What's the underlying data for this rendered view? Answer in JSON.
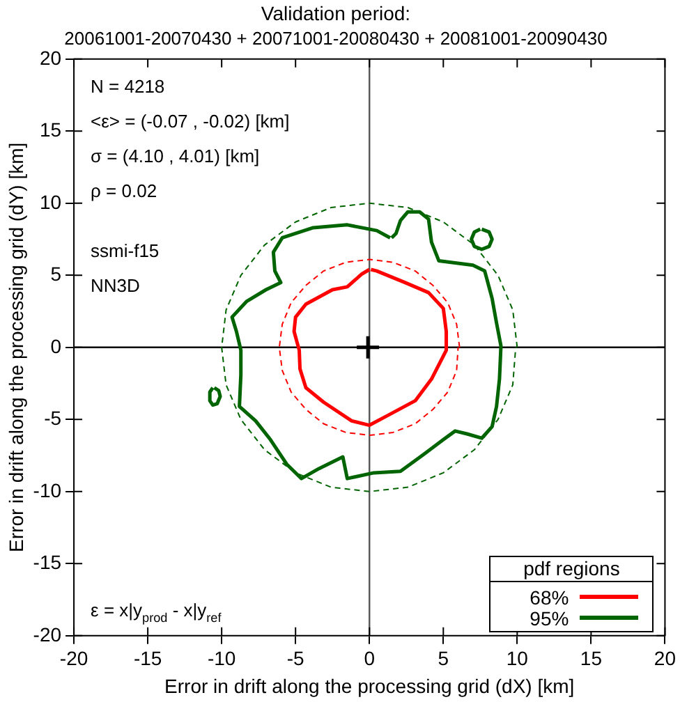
{
  "chart_data": {
    "type": "line",
    "title": "Validation period:",
    "subtitle": "20061001-20070430 + 20071001-20080430 + 20081001-20090430",
    "xlabel": "Error in drift along the processing grid (dX) [km]",
    "ylabel": "Error in drift along the processing grid (dY) [km]",
    "legend_title": "pdf regions",
    "legend": "bottom right",
    "xlim": [
      -20,
      20
    ],
    "ylim": [
      -20,
      20
    ],
    "xticks": [
      -20,
      -15,
      -10,
      -5,
      0,
      5,
      10,
      15,
      20
    ],
    "yticks": [
      -20,
      -15,
      -10,
      -5,
      0,
      5,
      10,
      15,
      20
    ],
    "annotations": [
      "N = 4218",
      "<ε> = (-0.07 , -0.02) [km]",
      "σ = (4.10 , 4.01) [km]",
      "ρ = 0.02",
      "ssmi-f15",
      "NN3D",
      "ε = x|y$_{prod}$ - x|y$_{ref}$"
    ],
    "ref_lines": [
      {
        "axis": "x",
        "value": 0,
        "color": "#555555"
      },
      {
        "axis": "y",
        "value": 0,
        "color": "#000000"
      }
    ],
    "series": [
      {
        "name": "68%",
        "color": "#ff0000",
        "x": [
          0,
          -0.5,
          -1.5,
          -2.5,
          -4.3,
          -5.0,
          -5.1,
          -4.75,
          -4.7,
          -4.3,
          -3.1,
          -1.2,
          0,
          1.1,
          3.1,
          4.2,
          5.2,
          5.2,
          5.0,
          4.0,
          2.4,
          0.5,
          0.1
        ],
        "values": [
          5.4,
          5.1,
          4.2,
          4.0,
          3.0,
          2.1,
          1.1,
          -0.2,
          -1.5,
          -2.8,
          -3.8,
          -5.1,
          -5.4,
          -4.8,
          -3.7,
          -2.2,
          -0.2,
          1.1,
          2.7,
          3.8,
          4.5,
          5.3,
          5.4
        ]
      },
      {
        "name": "95%",
        "color": "#006400",
        "x": [
          1.4,
          0.5,
          -1.5,
          -3.8,
          -5.9,
          -6.5,
          -6.4,
          -6.0,
          -7.0,
          -8.3,
          -9.3,
          -9.0,
          -8.7,
          -8.7,
          -8.8,
          -7.7,
          -6.7,
          -5.6,
          -4.6,
          -3.4,
          -1.8,
          -1.5,
          0.3,
          2.1,
          3.7,
          5.0,
          5.8,
          6.6,
          7.6,
          8.3,
          8.6,
          8.8,
          8.9,
          8.6,
          8.3,
          7.8,
          7.0,
          4.7,
          4.2,
          4.0,
          3.4,
          2.6,
          2.1,
          1.8,
          1.5
        ],
        "values": [
          7.6,
          8.1,
          8.5,
          8.3,
          7.6,
          6.6,
          5.3,
          4.5,
          4.0,
          3.2,
          2.1,
          1.1,
          -0.2,
          -1.9,
          -4.1,
          -5.1,
          -6.4,
          -8.1,
          -9.1,
          -8.4,
          -7.6,
          -9.1,
          -8.7,
          -8.6,
          -7.4,
          -6.4,
          -5.8,
          -6.0,
          -6.3,
          -5.5,
          -4.1,
          -2.2,
          0.1,
          1.7,
          3.4,
          5.3,
          5.7,
          6.0,
          7.3,
          8.9,
          9.4,
          9.4,
          8.8,
          7.9,
          7.6
        ]
      },
      {
        "color": "#006400",
        "x": [
          7.6,
          8.1,
          8.3,
          8.1,
          7.6,
          7.1,
          6.9,
          7.1,
          7.5
        ],
        "values": [
          8.2,
          8.0,
          7.5,
          7.0,
          6.8,
          7.0,
          7.5,
          8.0,
          8.2
        ]
      },
      {
        "color": "#006400",
        "x": [
          -10.5,
          -10.2,
          -10.1,
          -10.3,
          -10.6,
          -10.8,
          -10.8,
          -10.6
        ],
        "values": [
          -2.8,
          -3.0,
          -3.4,
          -3.9,
          -4.0,
          -3.7,
          -3.1,
          -2.8
        ]
      },
      {
        "color": "#ff0000",
        "line_style": "dashed",
        "x": [
          6.1,
          5.9,
          5.3,
          4.3,
          3.1,
          1.6,
          0,
          -1.6,
          -3.1,
          -4.3,
          -5.3,
          -5.9,
          -6.1,
          -5.9,
          -5.3,
          -4.3,
          -3.1,
          -1.6,
          0,
          1.6,
          3.1,
          4.3,
          5.3,
          5.9,
          6.0
        ],
        "values": [
          0,
          1.6,
          3.1,
          4.3,
          5.3,
          5.9,
          6.1,
          5.9,
          5.3,
          4.3,
          3.1,
          1.6,
          0,
          -1.6,
          -3.1,
          -4.3,
          -5.3,
          -5.9,
          -6.1,
          -5.9,
          -5.3,
          -4.3,
          -3.1,
          -1.6,
          0
        ]
      },
      {
        "color": "#006400",
        "line_style": "dashed",
        "x": [
          10,
          9.7,
          8.7,
          7.1,
          5,
          2.6,
          0,
          -2.6,
          -5,
          -7.1,
          -8.7,
          -9.7,
          -10,
          -9.7,
          -8.7,
          -7.1,
          -5,
          -2.6,
          0,
          2.6,
          5,
          7.1,
          8.7,
          9.7,
          9.9
        ],
        "values": [
          0,
          2.6,
          5,
          7.1,
          8.7,
          9.7,
          10,
          9.7,
          8.7,
          7.1,
          5,
          2.6,
          0,
          -2.6,
          -5,
          -7.1,
          -8.7,
          -9.7,
          -10,
          -9.7,
          -8.7,
          -7.1,
          -5,
          -2.6,
          0
        ]
      },
      {
        "type": "scatter",
        "marker": "cross",
        "color": "#000000",
        "x": [
          -0.1
        ],
        "values": [
          0
        ]
      }
    ]
  }
}
